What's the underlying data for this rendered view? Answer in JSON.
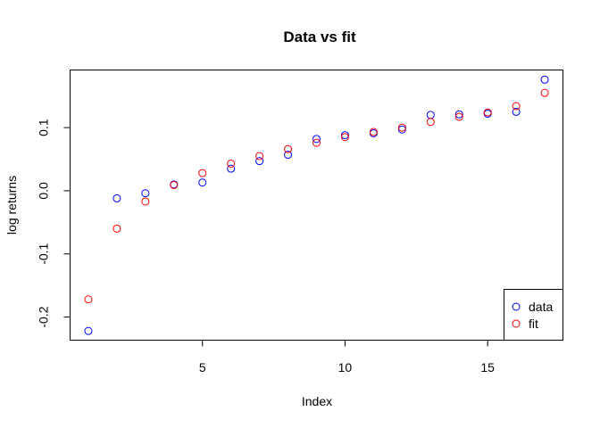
{
  "chart_data": {
    "type": "scatter",
    "title": "Data vs fit",
    "xlabel": "Index",
    "ylabel": "log returns",
    "xlim": [
      0.36,
      17.64
    ],
    "ylim": [
      -0.2366,
      0.1912
    ],
    "xticks": [
      5,
      10,
      15
    ],
    "yticks": [
      -0.2,
      -0.1,
      0.0,
      0.1
    ],
    "ytick_labels": [
      "-0.2",
      "-0.1",
      "0.0",
      "0.1"
    ],
    "xtick_labels": [
      "5",
      "10",
      "15"
    ],
    "legend_position": "bottom-right",
    "grid": false,
    "series": [
      {
        "name": "data",
        "color": "#0000FF",
        "marker": "open-circle",
        "x": [
          1,
          2,
          3,
          4,
          5,
          6,
          7,
          8,
          9,
          10,
          11,
          12,
          13,
          14,
          15,
          16,
          17
        ],
        "y": [
          -0.222,
          -0.012,
          -0.004,
          0.01,
          0.013,
          0.035,
          0.047,
          0.057,
          0.082,
          0.088,
          0.091,
          0.097,
          0.12,
          0.121,
          0.122,
          0.125,
          0.176
        ]
      },
      {
        "name": "fit",
        "color": "#FF0000",
        "marker": "open-circle",
        "x": [
          1,
          2,
          3,
          4,
          5,
          6,
          7,
          8,
          9,
          10,
          11,
          12,
          13,
          14,
          15,
          16,
          17
        ],
        "y": [
          -0.172,
          -0.06,
          -0.017,
          0.009,
          0.028,
          0.043,
          0.055,
          0.066,
          0.076,
          0.085,
          0.093,
          0.1,
          0.109,
          0.117,
          0.124,
          0.134,
          0.155
        ]
      }
    ]
  }
}
